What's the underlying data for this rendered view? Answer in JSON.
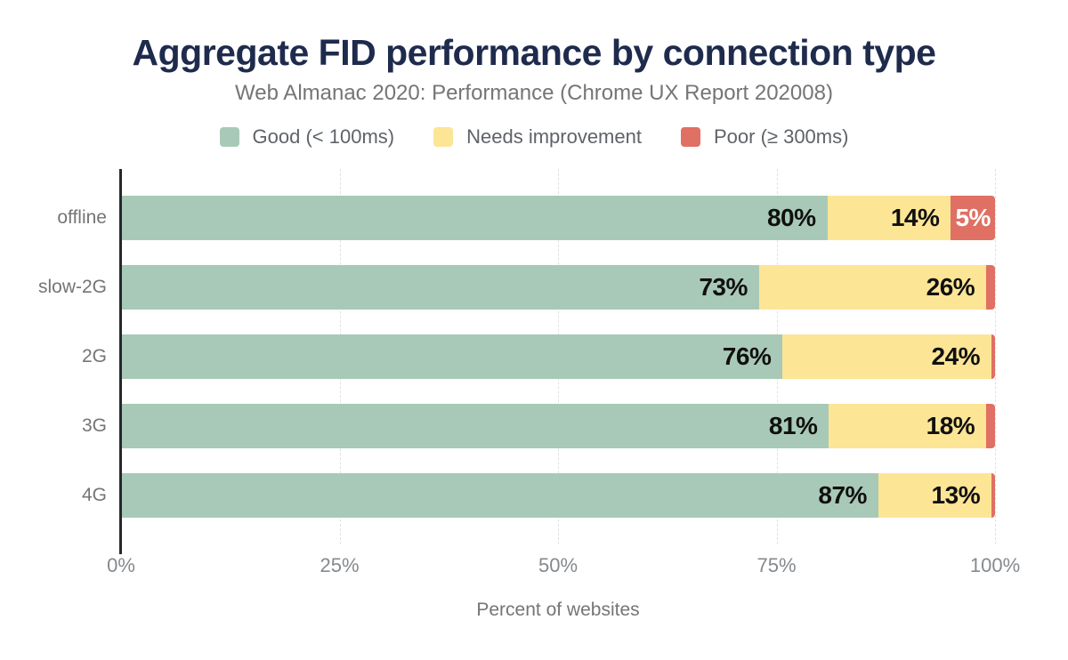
{
  "page": {
    "background": "#ffffff"
  },
  "title": "Aggregate FID performance by connection type",
  "subtitle": "Web Almanac 2020: Performance (Chrome UX Report 202008)",
  "legend": {
    "items": [
      {
        "label": "Good (< 100ms)",
        "color": "#a8c9b8"
      },
      {
        "label": "Needs improvement",
        "color": "#fde596"
      },
      {
        "label": "Poor (≥ 300ms)",
        "color": "#df7063"
      }
    ]
  },
  "colors": {
    "good": "#a8c9b8",
    "needs_improvement": "#fde596",
    "poor": "#df7063",
    "title_text": "#1f2b4d",
    "subtitle_text": "#757575",
    "axis_line": "#26282b",
    "tick_text": "#85898d",
    "data_label": "#101010",
    "data_label_on_poor": "#ffffff",
    "gridline": "#dfe1e3"
  },
  "chart_data": {
    "type": "bar",
    "stacked": true,
    "orientation": "horizontal",
    "title": "Aggregate FID performance by connection type",
    "subtitle": "Web Almanac 2020: Performance (Chrome UX Report 202008)",
    "categories": [
      "offline",
      "slow-2G",
      "2G",
      "3G",
      "4G"
    ],
    "series": [
      {
        "name": "Good (< 100ms)",
        "color": "#a8c9b8",
        "values": [
          80,
          73,
          76,
          81,
          87
        ]
      },
      {
        "name": "Needs improvement",
        "color": "#fde596",
        "values": [
          14,
          26,
          24,
          18,
          13
        ]
      },
      {
        "name": "Poor (≥ 300ms)",
        "color": "#df7063",
        "values": [
          5,
          1,
          0.4,
          1,
          0.4
        ]
      }
    ],
    "data_labels": {
      "format": "{value}%",
      "min_value_shown": 5,
      "labels_visible": [
        "80%",
        "14%",
        "5%",
        "73%",
        "26%",
        "76%",
        "24%",
        "81%",
        "18%",
        "87%",
        "13%"
      ]
    },
    "xlabel": "Percent of websites",
    "x_ticks": [
      {
        "label": "0%",
        "value": 0
      },
      {
        "label": "25%",
        "value": 25
      },
      {
        "label": "50%",
        "value": 50
      },
      {
        "label": "75%",
        "value": 75
      },
      {
        "label": "100%",
        "value": 100
      }
    ],
    "xlim": [
      0,
      100
    ],
    "grid": "vertical dashed gridlines at 25, 50, 75, 100",
    "legend_position": "top"
  }
}
